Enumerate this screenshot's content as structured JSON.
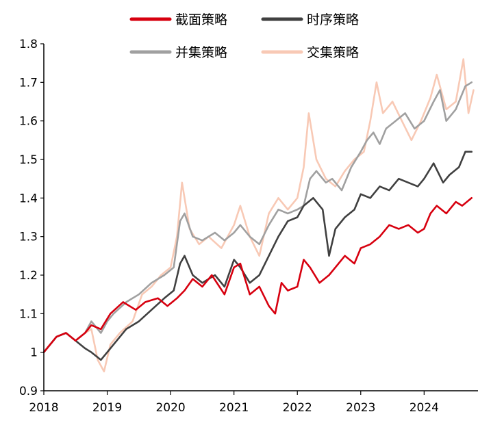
{
  "chart_data": {
    "type": "line",
    "title": "",
    "xlabel": "",
    "ylabel": "",
    "ylim": [
      0.9,
      1.8
    ],
    "yticks": [
      "0.9",
      "1",
      "1.1",
      "1.2",
      "1.3",
      "1.4",
      "1.5",
      "1.6",
      "1.7",
      "1.8"
    ],
    "xlim": [
      2018.0,
      2024.85
    ],
    "xticks": [
      "2018",
      "2019",
      "2020",
      "2021",
      "2022",
      "2023",
      "2024"
    ],
    "grid": false,
    "legend_position": "top",
    "series": [
      {
        "name": "截面策略",
        "color": "#D7000F",
        "x": [
          2018.0,
          2018.2,
          2018.35,
          2018.5,
          2018.65,
          2018.75,
          2018.9,
          2019.05,
          2019.25,
          2019.45,
          2019.6,
          2019.8,
          2019.95,
          2020.1,
          2020.22,
          2020.35,
          2020.5,
          2020.65,
          2020.85,
          2021.0,
          2021.1,
          2021.25,
          2021.4,
          2021.55,
          2021.65,
          2021.75,
          2021.85,
          2022.0,
          2022.1,
          2022.2,
          2022.35,
          2022.5,
          2022.6,
          2022.75,
          2022.9,
          2023.0,
          2023.15,
          2023.3,
          2023.45,
          2023.6,
          2023.75,
          2023.9,
          2024.0,
          2024.1,
          2024.2,
          2024.35,
          2024.5,
          2024.6,
          2024.75
        ],
        "y": [
          1.0,
          1.04,
          1.05,
          1.03,
          1.05,
          1.07,
          1.06,
          1.1,
          1.13,
          1.11,
          1.13,
          1.14,
          1.12,
          1.14,
          1.16,
          1.19,
          1.17,
          1.2,
          1.15,
          1.22,
          1.23,
          1.15,
          1.17,
          1.12,
          1.1,
          1.18,
          1.16,
          1.17,
          1.24,
          1.22,
          1.18,
          1.2,
          1.22,
          1.25,
          1.23,
          1.27,
          1.28,
          1.3,
          1.33,
          1.32,
          1.33,
          1.31,
          1.32,
          1.36,
          1.38,
          1.36,
          1.39,
          1.38,
          1.4
        ]
      },
      {
        "name": "时序策略",
        "color": "#404040",
        "x": [
          2018.0,
          2018.2,
          2018.35,
          2018.5,
          2018.65,
          2018.75,
          2018.9,
          2019.0,
          2019.1,
          2019.3,
          2019.5,
          2019.7,
          2019.9,
          2020.05,
          2020.15,
          2020.22,
          2020.35,
          2020.5,
          2020.7,
          2020.85,
          2021.0,
          2021.1,
          2021.25,
          2021.4,
          2021.55,
          2021.7,
          2021.85,
          2022.0,
          2022.1,
          2022.25,
          2022.4,
          2022.5,
          2022.6,
          2022.75,
          2022.9,
          2023.0,
          2023.15,
          2023.3,
          2023.45,
          2023.6,
          2023.75,
          2023.9,
          2024.0,
          2024.15,
          2024.3,
          2024.4,
          2024.55,
          2024.65,
          2024.75
        ],
        "y": [
          1.0,
          1.04,
          1.05,
          1.03,
          1.01,
          1.0,
          0.98,
          1.0,
          1.02,
          1.06,
          1.08,
          1.11,
          1.14,
          1.16,
          1.23,
          1.25,
          1.2,
          1.18,
          1.2,
          1.17,
          1.24,
          1.22,
          1.18,
          1.2,
          1.25,
          1.3,
          1.34,
          1.35,
          1.38,
          1.4,
          1.37,
          1.25,
          1.32,
          1.35,
          1.37,
          1.41,
          1.4,
          1.43,
          1.42,
          1.45,
          1.44,
          1.43,
          1.45,
          1.49,
          1.44,
          1.46,
          1.48,
          1.52,
          1.52
        ]
      },
      {
        "name": "并集策略",
        "color": "#A0A0A0",
        "x": [
          2018.0,
          2018.2,
          2018.35,
          2018.5,
          2018.65,
          2018.75,
          2018.9,
          2019.0,
          2019.1,
          2019.3,
          2019.5,
          2019.7,
          2019.9,
          2020.05,
          2020.15,
          2020.22,
          2020.35,
          2020.5,
          2020.7,
          2020.85,
          2021.0,
          2021.1,
          2021.25,
          2021.4,
          2021.55,
          2021.7,
          2021.85,
          2022.0,
          2022.1,
          2022.2,
          2022.3,
          2022.45,
          2022.55,
          2022.7,
          2022.85,
          2023.0,
          2023.1,
          2023.2,
          2023.3,
          2023.4,
          2023.55,
          2023.7,
          2023.85,
          2024.0,
          2024.15,
          2024.25,
          2024.35,
          2024.5,
          2024.65,
          2024.75
        ],
        "y": [
          1.0,
          1.04,
          1.05,
          1.03,
          1.05,
          1.08,
          1.05,
          1.08,
          1.1,
          1.13,
          1.15,
          1.18,
          1.2,
          1.22,
          1.34,
          1.36,
          1.3,
          1.29,
          1.31,
          1.29,
          1.31,
          1.33,
          1.3,
          1.28,
          1.33,
          1.37,
          1.36,
          1.37,
          1.38,
          1.45,
          1.47,
          1.44,
          1.45,
          1.42,
          1.48,
          1.52,
          1.55,
          1.57,
          1.54,
          1.58,
          1.6,
          1.62,
          1.58,
          1.6,
          1.65,
          1.68,
          1.6,
          1.63,
          1.69,
          1.7
        ]
      },
      {
        "name": "交集策略",
        "color": "#F8C9B5",
        "x": [
          2018.0,
          2018.2,
          2018.35,
          2018.5,
          2018.65,
          2018.75,
          2018.85,
          2018.95,
          2019.05,
          2019.2,
          2019.4,
          2019.55,
          2019.7,
          2019.85,
          2020.0,
          2020.1,
          2020.18,
          2020.3,
          2020.45,
          2020.6,
          2020.8,
          2021.0,
          2021.1,
          2021.25,
          2021.4,
          2021.55,
          2021.7,
          2021.85,
          2022.0,
          2022.1,
          2022.18,
          2022.3,
          2022.45,
          2022.6,
          2022.75,
          2022.9,
          2023.05,
          2023.15,
          2023.25,
          2023.35,
          2023.5,
          2023.65,
          2023.8,
          2023.95,
          2024.1,
          2024.2,
          2024.35,
          2024.5,
          2024.62,
          2024.7,
          2024.78
        ],
        "y": [
          1.0,
          1.04,
          1.05,
          1.03,
          1.05,
          1.06,
          0.98,
          0.95,
          1.02,
          1.05,
          1.08,
          1.15,
          1.17,
          1.2,
          1.22,
          1.3,
          1.44,
          1.32,
          1.28,
          1.3,
          1.27,
          1.33,
          1.38,
          1.3,
          1.25,
          1.36,
          1.4,
          1.37,
          1.4,
          1.48,
          1.62,
          1.5,
          1.45,
          1.43,
          1.47,
          1.5,
          1.52,
          1.6,
          1.7,
          1.62,
          1.65,
          1.6,
          1.55,
          1.6,
          1.66,
          1.72,
          1.63,
          1.65,
          1.76,
          1.62,
          1.68
        ]
      }
    ]
  }
}
